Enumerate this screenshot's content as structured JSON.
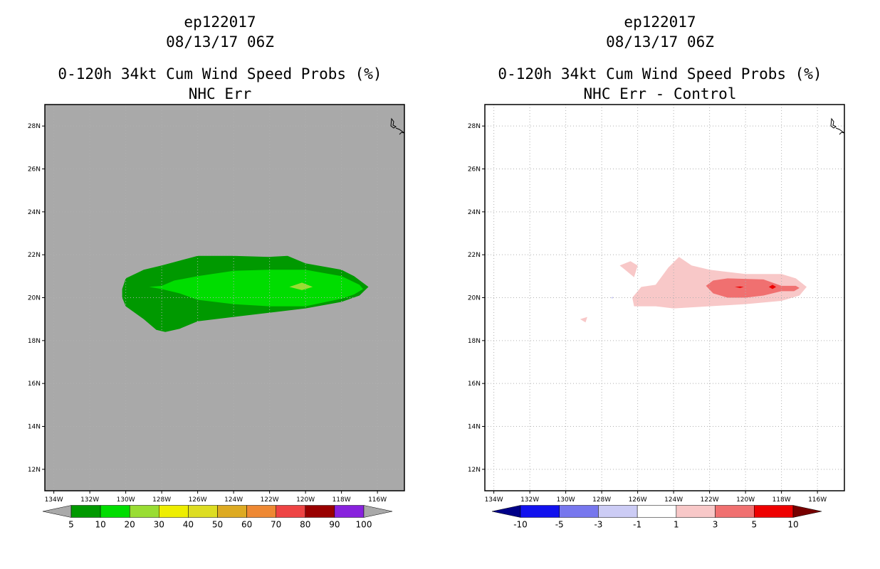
{
  "chart_data": [
    {
      "type": "heatmap",
      "storm_id": "ep122017",
      "datetime": "08/13/17 06Z",
      "title": "0-120h 34kt Cum Wind Speed Probs (%)",
      "subtitle": "NHC Err",
      "xlim": [
        -134.5,
        -114.5
      ],
      "ylim": [
        11,
        29
      ],
      "x_ticks": [
        -134,
        -132,
        -130,
        -128,
        -126,
        -124,
        -122,
        -120,
        -118,
        -116
      ],
      "x_tick_labels": [
        "134W",
        "132W",
        "130W",
        "128W",
        "126W",
        "124W",
        "122W",
        "120W",
        "118W",
        "116W"
      ],
      "y_ticks": [
        12,
        14,
        16,
        18,
        20,
        22,
        24,
        26,
        28
      ],
      "y_tick_labels": [
        "12N",
        "14N",
        "16N",
        "18N",
        "20N",
        "22N",
        "24N",
        "26N",
        "28N"
      ],
      "grid": true,
      "background_color": "#a9a9a9",
      "colorbar": {
        "levels": [
          "5",
          "10",
          "20",
          "30",
          "40",
          "50",
          "60",
          "70",
          "80",
          "90",
          "100"
        ],
        "colors": [
          "#009900",
          "#00dd00",
          "#99dd33",
          "#eeee00",
          "#dddd22",
          "#ddaa22",
          "#ee8833",
          "#ee4444",
          "#990000",
          "#8822dd"
        ],
        "under_color": "#a9a9a9",
        "over_color": "#a9a9a9"
      },
      "regions": [
        {
          "level": "5-10",
          "color": "#009900",
          "polygon": [
            [
              -130.2,
              20.4
            ],
            [
              -130.0,
              20.9
            ],
            [
              -129.0,
              21.3
            ],
            [
              -128.0,
              21.5
            ],
            [
              -126.0,
              21.95
            ],
            [
              -124.0,
              21.95
            ],
            [
              -122.0,
              21.9
            ],
            [
              -121.0,
              21.95
            ],
            [
              -120.0,
              21.6
            ],
            [
              -118.0,
              21.3
            ],
            [
              -117.3,
              21.0
            ],
            [
              -116.5,
              20.5
            ],
            [
              -117.0,
              20.1
            ],
            [
              -118.0,
              19.8
            ],
            [
              -120.0,
              19.5
            ],
            [
              -122.0,
              19.3
            ],
            [
              -124.0,
              19.1
            ],
            [
              -126.0,
              18.9
            ],
            [
              -127.0,
              18.55
            ],
            [
              -127.8,
              18.4
            ],
            [
              -128.3,
              18.5
            ],
            [
              -129.0,
              19.0
            ],
            [
              -130.0,
              19.6
            ],
            [
              -130.2,
              20.0
            ]
          ]
        },
        {
          "level": "10-20",
          "color": "#00dd00",
          "polygon": [
            [
              -128.7,
              20.5
            ],
            [
              -128.0,
              20.55
            ],
            [
              -127.3,
              20.8
            ],
            [
              -126.0,
              21.0
            ],
            [
              -124.0,
              21.25
            ],
            [
              -122.0,
              21.3
            ],
            [
              -120.0,
              21.3
            ],
            [
              -118.0,
              21.0
            ],
            [
              -117.0,
              20.6
            ],
            [
              -116.8,
              20.4
            ],
            [
              -117.3,
              20.15
            ],
            [
              -118.0,
              19.95
            ],
            [
              -120.0,
              19.6
            ],
            [
              -122.0,
              19.6
            ],
            [
              -124.0,
              19.7
            ],
            [
              -126.0,
              19.9
            ],
            [
              -127.0,
              20.2
            ],
            [
              -128.0,
              20.4
            ]
          ]
        },
        {
          "level": "20-30",
          "color": "#99dd33",
          "polygon": [
            [
              -120.9,
              20.5
            ],
            [
              -120.2,
              20.7
            ],
            [
              -119.6,
              20.5
            ],
            [
              -120.2,
              20.35
            ]
          ]
        }
      ]
    },
    {
      "type": "heatmap",
      "storm_id": "ep122017",
      "datetime": "08/13/17 06Z",
      "title": "0-120h 34kt Cum Wind Speed Probs (%)",
      "subtitle": "NHC Err - Control",
      "xlim": [
        -134.5,
        -114.5
      ],
      "ylim": [
        11,
        29
      ],
      "x_ticks": [
        -134,
        -132,
        -130,
        -128,
        -126,
        -124,
        -122,
        -120,
        -118,
        -116
      ],
      "x_tick_labels": [
        "134W",
        "132W",
        "130W",
        "128W",
        "126W",
        "124W",
        "122W",
        "120W",
        "118W",
        "116W"
      ],
      "y_ticks": [
        12,
        14,
        16,
        18,
        20,
        22,
        24,
        26,
        28
      ],
      "y_tick_labels": [
        "12N",
        "14N",
        "16N",
        "18N",
        "20N",
        "22N",
        "24N",
        "26N",
        "28N"
      ],
      "grid": true,
      "background_color": "#ffffff",
      "colorbar": {
        "levels": [
          "-10",
          "-5",
          "-3",
          "-1",
          "1",
          "3",
          "5",
          "10"
        ],
        "colors": [
          "#1111ee",
          "#7777ee",
          "#ccccf5",
          "#ffffff",
          "#f8c8c8",
          "#f07070",
          "#ee0000"
        ],
        "under_color": "#000088",
        "over_color": "#770000"
      },
      "regions": [
        {
          "level": "1-3",
          "color": "#f8c8c8",
          "polygon": [
            [
              -124.3,
              21.4
            ],
            [
              -123.7,
              21.9
            ],
            [
              -123.0,
              21.5
            ],
            [
              -122.0,
              21.3
            ],
            [
              -120.0,
              21.1
            ],
            [
              -118.0,
              21.1
            ],
            [
              -117.2,
              20.9
            ],
            [
              -116.6,
              20.5
            ],
            [
              -117.0,
              20.1
            ],
            [
              -118.0,
              19.85
            ],
            [
              -120.0,
              19.7
            ],
            [
              -122.0,
              19.6
            ],
            [
              -124.0,
              19.5
            ],
            [
              -125.0,
              19.6
            ],
            [
              -126.2,
              19.6
            ],
            [
              -126.3,
              20.0
            ],
            [
              -125.8,
              20.5
            ],
            [
              -125.0,
              20.6
            ]
          ]
        },
        {
          "level": "1-3",
          "color": "#f8c8c8",
          "polygon": [
            [
              -127.0,
              21.5
            ],
            [
              -126.4,
              21.7
            ],
            [
              -126.0,
              21.5
            ],
            [
              -126.2,
              20.95
            ],
            [
              -126.7,
              21.3
            ]
          ]
        },
        {
          "level": "1-3",
          "color": "#f8c8c8",
          "polygon": [
            [
              -129.2,
              19.0
            ],
            [
              -128.8,
              19.1
            ],
            [
              -128.9,
              18.85
            ]
          ]
        },
        {
          "level": "3-5",
          "color": "#f07070",
          "polygon": [
            [
              -122.2,
              20.55
            ],
            [
              -121.8,
              20.8
            ],
            [
              -121.0,
              20.9
            ],
            [
              -119.0,
              20.85
            ],
            [
              -118.0,
              20.55
            ],
            [
              -117.2,
              20.55
            ],
            [
              -117.0,
              20.45
            ],
            [
              -117.3,
              20.3
            ],
            [
              -118.0,
              20.3
            ],
            [
              -119.0,
              20.1
            ],
            [
              -120.0,
              20.0
            ],
            [
              -121.0,
              20.0
            ],
            [
              -121.8,
              20.2
            ]
          ]
        },
        {
          "level": "5-10",
          "color": "#ee0000",
          "polygon": [
            [
              -120.6,
              20.5
            ],
            [
              -120.3,
              20.52
            ],
            [
              -120.1,
              20.5
            ],
            [
              -120.3,
              20.45
            ]
          ]
        },
        {
          "level": "5-10",
          "color": "#ee0000",
          "polygon": [
            [
              -118.7,
              20.5
            ],
            [
              -118.5,
              20.6
            ],
            [
              -118.3,
              20.5
            ],
            [
              -118.5,
              20.4
            ]
          ]
        },
        {
          "level": "-1--3",
          "color": "#ccccf5",
          "polygon": [
            [
              -127.5,
              20.0
            ],
            [
              -127.35,
              20.05
            ],
            [
              -127.4,
              19.95
            ]
          ]
        }
      ]
    }
  ]
}
